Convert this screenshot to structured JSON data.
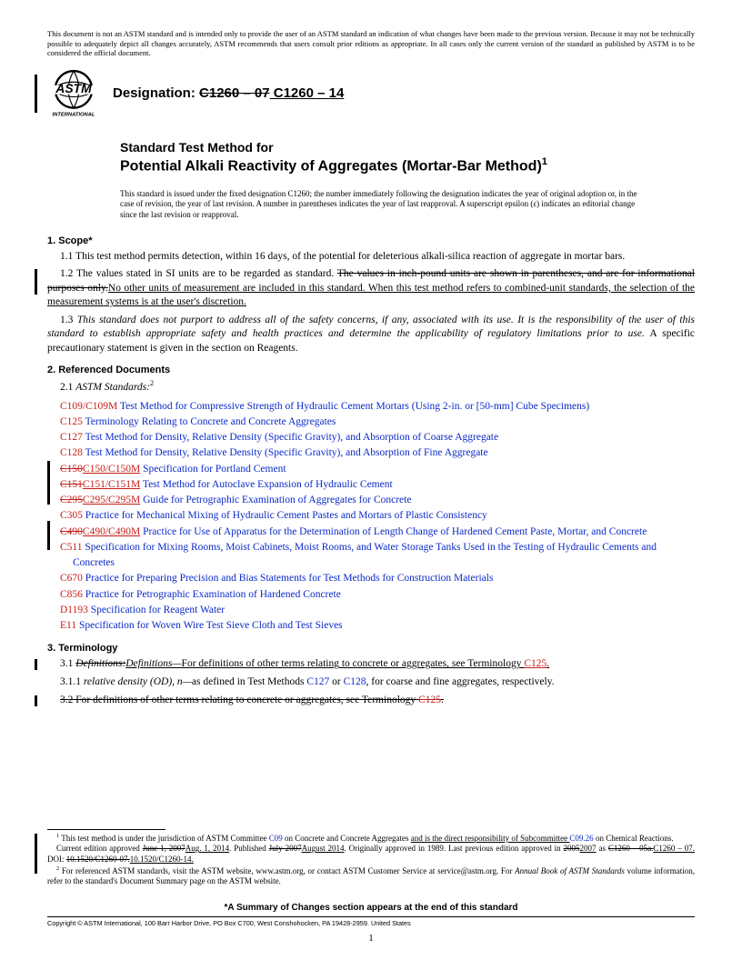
{
  "disclaimer": "This document is not an ASTM standard and is intended only to provide the user of an ASTM standard an indication of what changes have been made to the previous version. Because it may not be technically possible to adequately depict all changes accurately, ASTM recommends that users consult prior editions as appropriate. In all cases only the current version of the standard as published by ASTM is to be considered the official document.",
  "designation_label": "Designation: ",
  "designation_old": "C1260 – 07",
  "designation_new": " C1260 – 14",
  "logo_text_top": "ASTM",
  "logo_text_bottom": "INTERNATIONAL",
  "title_small": "Standard Test Method for",
  "title_large": "Potential Alkali Reactivity of Aggregates (Mortar-Bar Method)",
  "title_sup": "1",
  "issued_note": "This standard is issued under the fixed designation C1260; the number immediately following the designation indicates the year of original adoption or, in the case of revision, the year of last revision. A number in parentheses indicates the year of last reapproval. A superscript epsilon (ε) indicates an editorial change since the last revision or reapproval.",
  "sec1_head": "1. Scope*",
  "sec1_1": "1.1 This test method permits detection, within 16 days, of the potential for deleterious alkali-silica reaction of aggregate in mortar bars.",
  "sec1_2a": "1.2 The values stated in SI units are to be regarded as standard. ",
  "sec1_2_strike": "The values in inch-pound units are shown in parentheses, and are for informational purposes only.",
  "sec1_2b": "No other units of measurement are included in this standard. When this test method refers to combined-unit standards, the selection of the measurement systems is at the user's discretion.",
  "sec1_3a": "1.3 ",
  "sec1_3i": "This standard does not purport to address all of the safety concerns, if any, associated with its use. It is the responsibility of the user of this standard to establish appropriate safety and health practices and determine the applicability of regulatory limitations prior to use.",
  "sec1_3b": " A specific precautionary statement is given in the section on Reagents.",
  "sec2_head": "2. Referenced Documents",
  "sec2_1": "2.1 ",
  "sec2_1i": "ASTM Standards:",
  "sec2_1sup": "2",
  "refs": [
    {
      "code": "C109/C109M",
      "text": " Test Method for Compressive Strength of Hydraulic Cement Mortars (Using 2-in. or [50-mm] Cube Specimens)",
      "strike_code": ""
    },
    {
      "code": "C125",
      "text": " Terminology Relating to Concrete and Concrete Aggregates",
      "strike_code": ""
    },
    {
      "code": "C127",
      "text": " Test Method for Density, Relative Density (Specific Gravity), and Absorption of Coarse Aggregate",
      "strike_code": ""
    },
    {
      "code": "C128",
      "text": " Test Method for Density, Relative Density (Specific Gravity), and Absorption of Fine Aggregate",
      "strike_code": ""
    },
    {
      "code": "C150/C150M",
      "text": " Specification for Portland Cement",
      "strike_code": "C150"
    },
    {
      "code": "C151/C151M",
      "text": " Test Method for Autoclave Expansion of Hydraulic Cement",
      "strike_code": "C151"
    },
    {
      "code": "C295/C295M",
      "text": " Guide for Petrographic Examination of Aggregates for Concrete",
      "strike_code": "C295"
    },
    {
      "code": "C305",
      "text": " Practice for Mechanical Mixing of Hydraulic Cement Pastes and Mortars of Plastic Consistency",
      "strike_code": ""
    },
    {
      "code": "C490/C490M",
      "text": " Practice for Use of Apparatus for the Determination of Length Change of Hardened Cement Paste, Mortar, and Concrete",
      "strike_code": "C490"
    },
    {
      "code": "C511",
      "text": " Specification for Mixing Rooms, Moist Cabinets, Moist Rooms, and Water Storage Tanks Used in the Testing of Hydraulic Cements and Concretes",
      "strike_code": ""
    },
    {
      "code": "C670",
      "text": " Practice for Preparing Precision and Bias Statements for Test Methods for Construction Materials",
      "strike_code": ""
    },
    {
      "code": "C856",
      "text": " Practice for Petrographic Examination of Hardened Concrete",
      "strike_code": ""
    },
    {
      "code": "D1193",
      "text": " Specification for Reagent Water",
      "strike_code": ""
    },
    {
      "code": "E11",
      "text": " Specification for Woven Wire Test Sieve Cloth and Test Sieves",
      "strike_code": ""
    }
  ],
  "sec3_head": "3. Terminology",
  "sec3_1a": "3.1 ",
  "sec3_1_strike": "Definitions:",
  "sec3_1_new": "Definitions—",
  "sec3_1b": "For definitions of other terms relating to concrete or aggregates, see Terminology ",
  "sec3_1_link": "C125",
  "sec3_1c": ".",
  "sec3_11a": "3.1.1 ",
  "sec3_11i": "relative density (OD), n—",
  "sec3_11b": "as defined in Test Methods ",
  "sec3_11_l1": "C127",
  "sec3_11_or": " or ",
  "sec3_11_l2": "C128",
  "sec3_11c": ", for coarse and fine aggregates, respectively.",
  "sec3_2_strike_a": "3.2 For definitions of other terms relating to concrete or aggregates, see Terminology ",
  "sec3_2_strike_link": "C125",
  "sec3_2_strike_b": ".",
  "fn1a": " This test method is under the jurisdiction of ASTM Committee ",
  "fn1_l1": "C09",
  "fn1b": " on Concrete and Concrete Aggregates ",
  "fn1_u": "and is the direct responsibility of Subcommittee ",
  "fn1_l2": "C09.26",
  "fn1c": " on Chemical Reactions.",
  "fn1d": "Current edition approved ",
  "fn1_d_strike": "June 1, 2007",
  "fn1_d_new": "Aug. 1, 2014",
  "fn1e": ". Published ",
  "fn1_e_strike": "July 2007",
  "fn1_e_new": "August 2014",
  "fn1f": ". Originally approved in 1989. Last previous edition approved in ",
  "fn1_f_strike": "2005",
  "fn1_f_new": "2007",
  "fn1g": " as ",
  "fn1_g_strike": "C1260 – 05a.",
  "fn1_g_new": "C1260 – 07.",
  "fn1h": " DOI: ",
  "fn1_h_strike": "10.1520/C1260-07.",
  "fn1_h_new": "10.1520/C1260-14.",
  "fn2a": " For referenced ASTM standards, visit the ASTM website, www.astm.org, or contact ASTM Customer Service at service@astm.org. For ",
  "fn2i": "Annual Book of ASTM Standards",
  "fn2b": " volume information, refer to the standard's Document Summary page on the ASTM website.",
  "bottom_note": "*A Summary of Changes section appears at the end of this standard",
  "copyright": "Copyright © ASTM International, 100 Barr Harbor Drive, PO Box C700, West Conshohocken, PA 19428-2959. United States",
  "page_num": "1"
}
